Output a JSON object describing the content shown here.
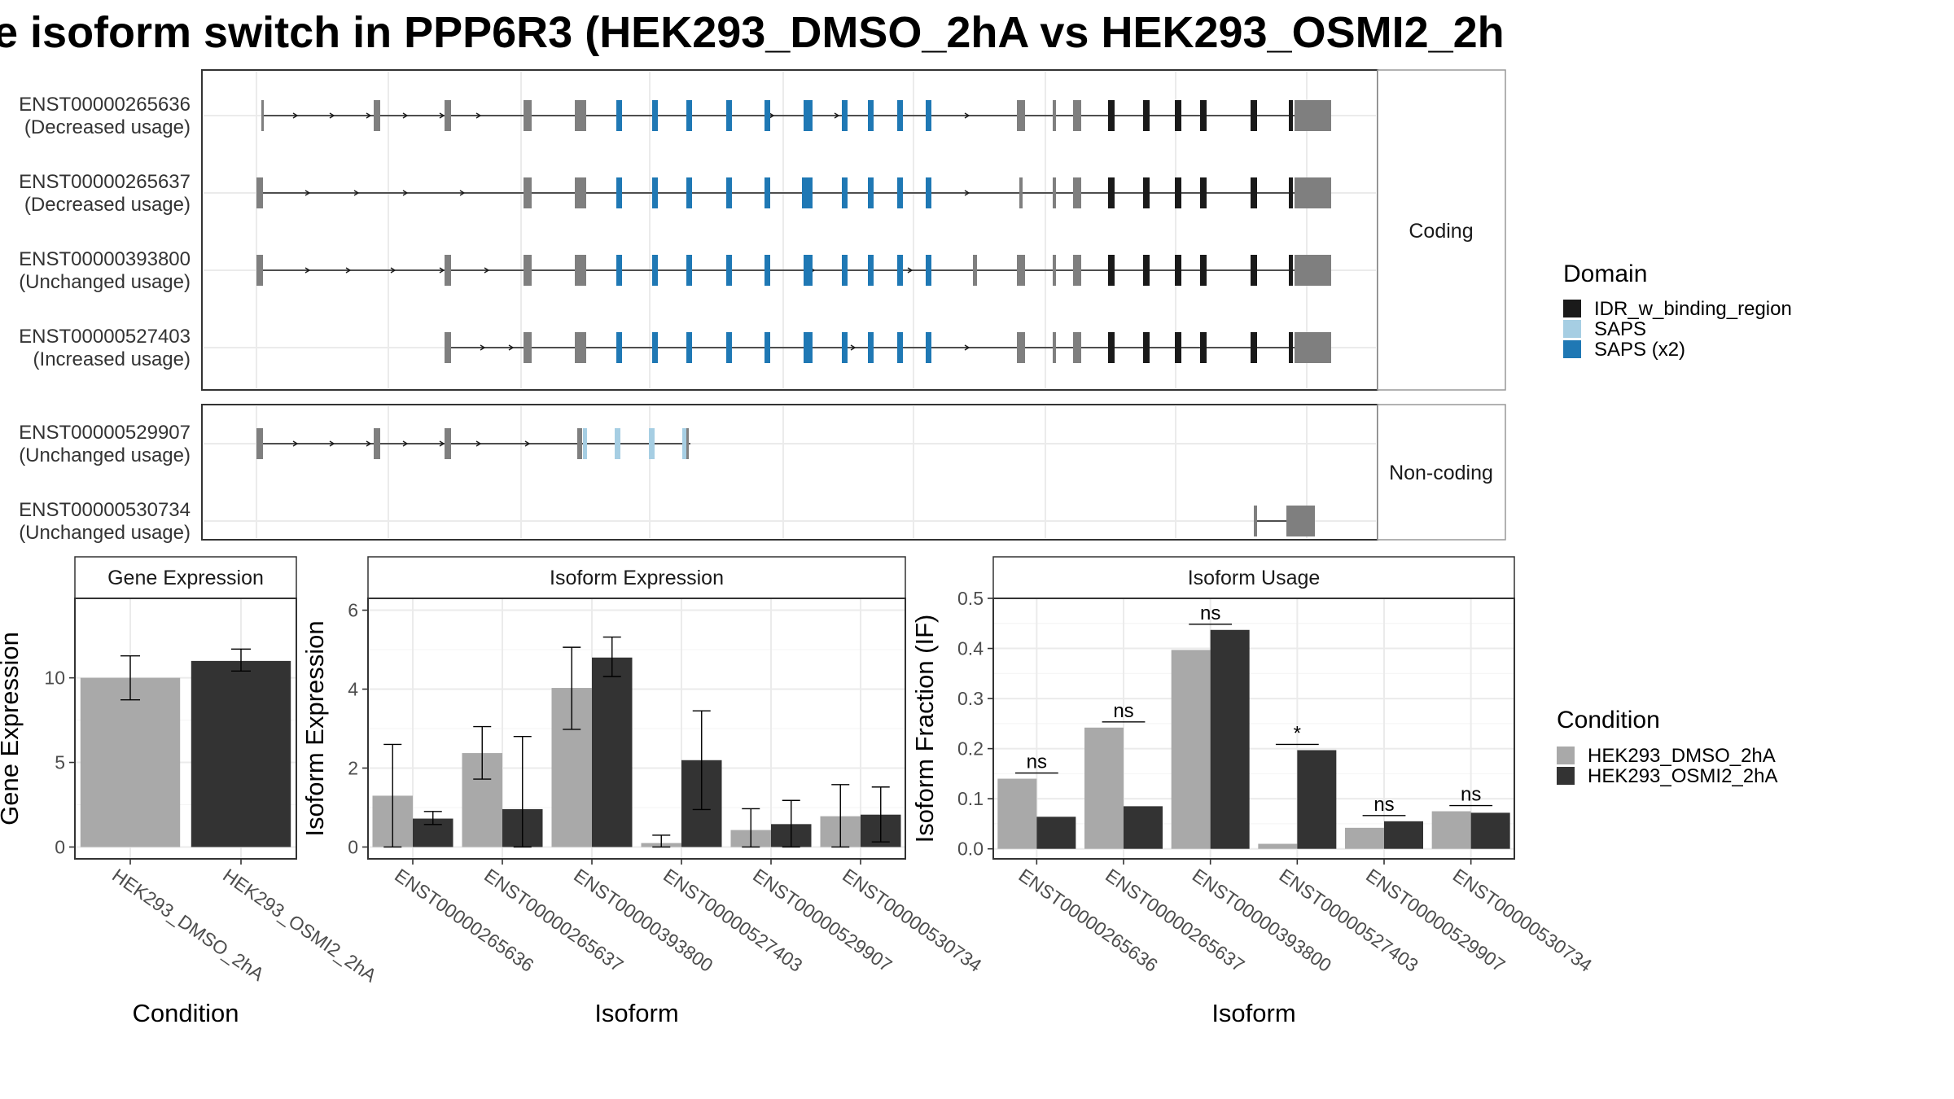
{
  "title": "e isoform switch in PPP6R3 (HEK293_DMSO_2hA vs HEK293_OSMI2_2h",
  "colors": {
    "coding_exon": "#7f7f7f",
    "idr": "#1a1a1a",
    "saps": "#a6cee3",
    "saps_x2": "#1f78b4",
    "dmso": "#a9a9a9",
    "osmi": "#333333"
  },
  "transcripts": {
    "coding_strip": "Coding",
    "noncoding_strip": "Non-coding",
    "coding": [
      {
        "id": "ENST00000265636",
        "usage": "(Decreased usage)"
      },
      {
        "id": "ENST00000265637",
        "usage": "(Decreased usage)"
      },
      {
        "id": "ENST00000393800",
        "usage": "(Unchanged usage)"
      },
      {
        "id": "ENST00000527403",
        "usage": "(Increased usage)"
      }
    ],
    "noncoding": [
      {
        "id": "ENST00000529907",
        "usage": "(Unchanged usage)"
      },
      {
        "id": "ENST00000530734",
        "usage": "(Unchanged usage)"
      }
    ]
  },
  "legend_domain": {
    "title": "Domain",
    "items": [
      {
        "label": "IDR_w_binding_region",
        "color": "#1a1a1a"
      },
      {
        "label": "SAPS",
        "color": "#a6cee3"
      },
      {
        "label": "SAPS (x2)",
        "color": "#1f78b4"
      }
    ]
  },
  "legend_condition": {
    "title": "Condition",
    "items": [
      {
        "label": "HEK293_DMSO_2hA",
        "color": "#a9a9a9"
      },
      {
        "label": "HEK293_OSMI2_2hA",
        "color": "#333333"
      }
    ]
  },
  "chart_data": [
    {
      "type": "bar",
      "title": "Gene Expression",
      "xlabel": "Condition",
      "ylabel": "Gene Expression",
      "categories": [
        "HEK293_DMSO_2hA",
        "HEK293_OSMI2_2hA"
      ],
      "values": [
        10.0,
        11.0
      ],
      "errors": [
        [
          8.7,
          11.3
        ],
        [
          10.4,
          11.7
        ]
      ],
      "yticks": [
        0,
        5,
        10
      ],
      "ylim": [
        -0.7,
        14.7
      ]
    },
    {
      "type": "bar",
      "title": "Isoform Expression",
      "xlabel": "Isoform",
      "ylabel": "Isoform Expression",
      "categories": [
        "ENST00000265636",
        "ENST00000265637",
        "ENST00000393800",
        "ENST00000527403",
        "ENST00000529907",
        "ENST00000530734"
      ],
      "series": [
        {
          "name": "HEK293_DMSO_2hA",
          "values": [
            1.3,
            2.38,
            4.03,
            0.1,
            0.43,
            0.78
          ],
          "errors": [
            [
              0.0,
              2.6
            ],
            [
              1.72,
              3.05
            ],
            [
              2.98,
              5.06
            ],
            [
              0.0,
              0.3
            ],
            [
              0.0,
              0.97
            ],
            [
              0.0,
              1.58
            ]
          ]
        },
        {
          "name": "HEK293_OSMI2_2hA",
          "values": [
            0.72,
            0.96,
            4.8,
            2.2,
            0.58,
            0.82
          ],
          "errors": [
            [
              0.57,
              0.9
            ],
            [
              0.0,
              2.8
            ],
            [
              4.32,
              5.32
            ],
            [
              0.95,
              3.45
            ],
            [
              0.0,
              1.18
            ],
            [
              0.13,
              1.52
            ]
          ]
        }
      ],
      "yticks": [
        0,
        2,
        4,
        6
      ],
      "ylim": [
        -0.3,
        6.3
      ]
    },
    {
      "type": "bar",
      "title": "Isoform Usage",
      "xlabel": "Isoform",
      "ylabel": "Isoform Fraction (IF)",
      "categories": [
        "ENST00000265636",
        "ENST00000265637",
        "ENST00000393800",
        "ENST00000527403",
        "ENST00000529907",
        "ENST00000530734"
      ],
      "series": [
        {
          "name": "HEK293_DMSO_2hA",
          "values": [
            0.14,
            0.242,
            0.397,
            0.01,
            0.042,
            0.075
          ]
        },
        {
          "name": "HEK293_OSMI2_2hA",
          "values": [
            0.064,
            0.085,
            0.437,
            0.197,
            0.055,
            0.072
          ]
        }
      ],
      "significance": [
        "ns",
        "ns",
        "ns",
        "*",
        "ns",
        "ns"
      ],
      "yticks": [
        0.0,
        0.1,
        0.2,
        0.3,
        0.4,
        0.5
      ],
      "ylim": [
        -0.02,
        0.5
      ]
    }
  ]
}
